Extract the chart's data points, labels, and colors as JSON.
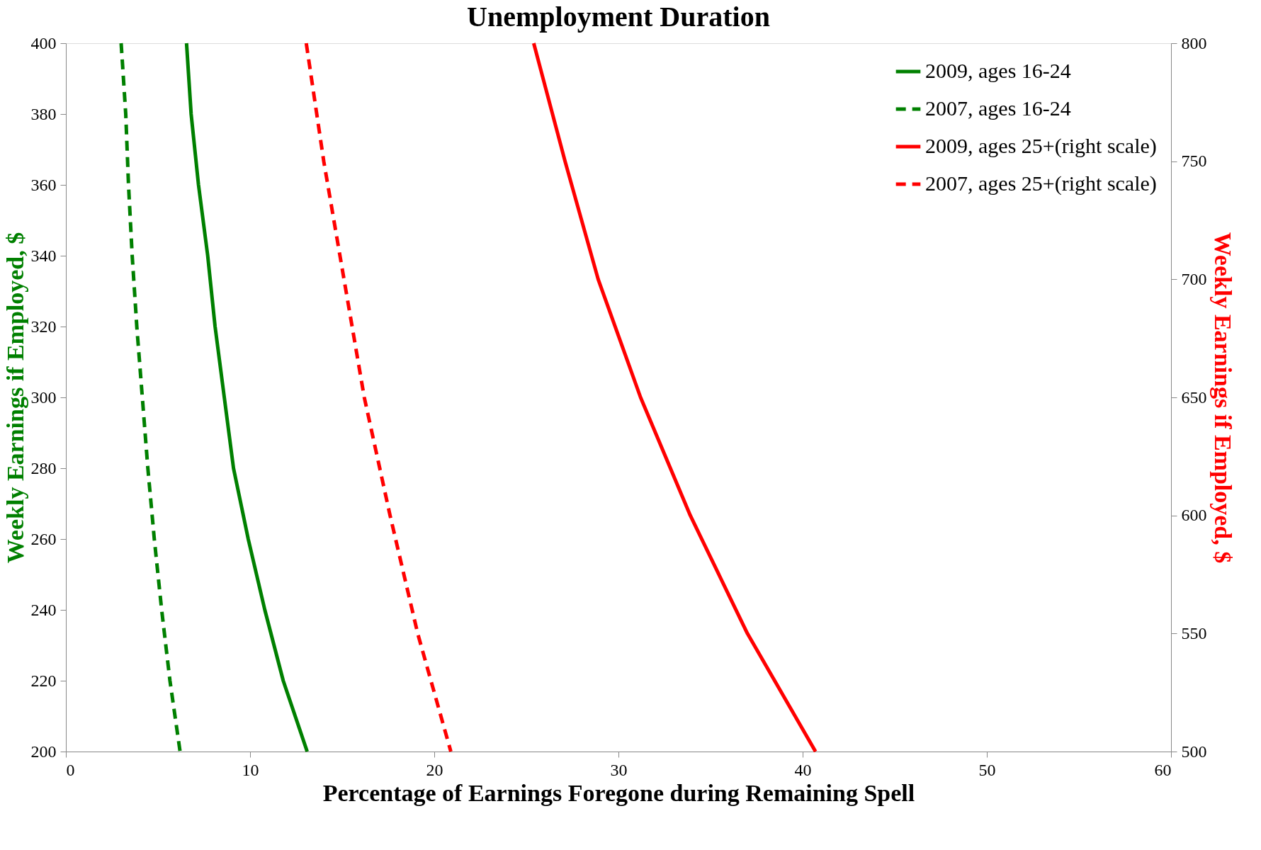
{
  "chart_data": {
    "type": "line",
    "title": "Unemployment Duration",
    "xlabel": "Percentage of Earnings Foregone during Remaining Spell",
    "ylabel": "Weekly Earnings if Employed, $",
    "y2label": "Weekly Earnings if Employed, $",
    "xlim": [
      0,
      60
    ],
    "xticks": [
      0,
      10,
      20,
      30,
      40,
      50,
      60
    ],
    "ylim": [
      200,
      400
    ],
    "yticks": [
      200,
      220,
      240,
      260,
      280,
      300,
      320,
      340,
      360,
      380,
      400
    ],
    "y2lim": [
      500,
      800
    ],
    "y2ticks": [
      500,
      550,
      600,
      650,
      700,
      750,
      800
    ],
    "grid": false,
    "legend": "top right",
    "marker": "none",
    "series": [
      {
        "name": "2009, ages 16-24",
        "color": "#008000",
        "line_style": "solid",
        "x": [
          6.55,
          6.8,
          7.2,
          7.7,
          8.1,
          8.6,
          9.1,
          9.9,
          10.8,
          11.8,
          13.1
        ],
        "values": [
          400,
          380,
          360,
          340,
          320,
          300,
          280,
          260,
          240,
          220,
          200
        ]
      },
      {
        "name": "2007, ages 16-24",
        "color": "#008000",
        "line_style": "dashed",
        "x": [
          3.0,
          3.25,
          3.4,
          3.6,
          3.85,
          4.15,
          4.45,
          4.8,
          5.2,
          5.65,
          6.2
        ],
        "values": [
          400,
          380,
          360,
          340,
          320,
          300,
          280,
          260,
          240,
          220,
          200
        ]
      },
      {
        "name": "2009, ages 25+(right scale)",
        "color": "#ff0000",
        "line_style": "solid",
        "axis": "y2",
        "x": [
          25.4,
          27.1,
          28.9,
          31.2,
          33.9,
          37.0,
          40.7
        ],
        "values": [
          800,
          750,
          700,
          650,
          600,
          550,
          500
        ]
      },
      {
        "name": "2007, ages 25+(right scale)",
        "color": "#ff0000",
        "line_style": "dashed",
        "axis": "y2",
        "x": [
          13.05,
          14.0,
          15.1,
          16.2,
          17.6,
          19.1,
          20.9
        ],
        "values": [
          800,
          750,
          700,
          650,
          600,
          550,
          500
        ]
      }
    ]
  }
}
